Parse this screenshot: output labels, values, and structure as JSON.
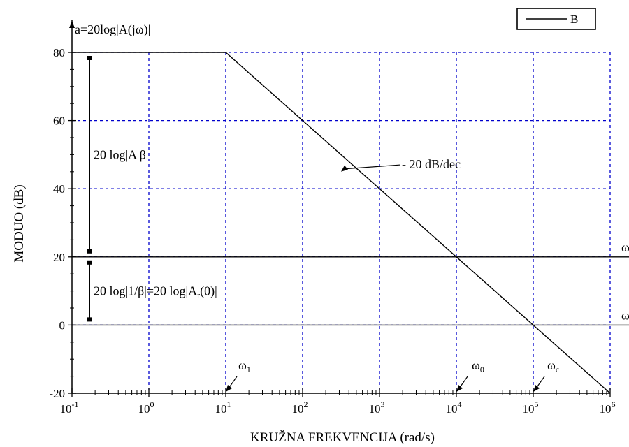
{
  "chart_data": {
    "type": "line",
    "title": "",
    "xlabel": "KRUŽNA FREKVENCIJA (rad/s)",
    "ylabel": "MODUO (dB)",
    "y_axis_top_label": "a=20log|A(jω)|",
    "x_scale": "log",
    "xlim": [
      0.1,
      1000000
    ],
    "ylim": [
      -20,
      80
    ],
    "x_ticks": [
      {
        "base": "10",
        "exp": "-1",
        "value": 0.1
      },
      {
        "base": "10",
        "exp": "0",
        "value": 1
      },
      {
        "base": "10",
        "exp": "1",
        "value": 10
      },
      {
        "base": "10",
        "exp": "2",
        "value": 100
      },
      {
        "base": "10",
        "exp": "3",
        "value": 1000
      },
      {
        "base": "10",
        "exp": "4",
        "value": 10000
      },
      {
        "base": "10",
        "exp": "5",
        "value": 100000
      },
      {
        "base": "10",
        "exp": "6",
        "value": 1000000
      }
    ],
    "y_ticks": [
      "-20",
      "0",
      "20",
      "40",
      "60",
      "80"
    ],
    "y_tick_values": [
      -20,
      0,
      20,
      40,
      60,
      80
    ],
    "grid": "dotted-blue",
    "grid_color": "#0000cc",
    "legend": {
      "position": "top-right",
      "entries": [
        "B"
      ]
    },
    "series": [
      {
        "name": "B",
        "x": [
          0.1,
          10,
          1000000
        ],
        "y": [
          80,
          80,
          -20
        ]
      }
    ],
    "reference_lines": [
      {
        "y": 20,
        "right_label": "ω"
      },
      {
        "y": 0,
        "right_label": "ω"
      }
    ],
    "annotations": {
      "slope": "- 20 dB/dec",
      "omega_1": {
        "base": "ω",
        "sub": "1",
        "x": 10
      },
      "omega_0": {
        "base": "ω",
        "sub": "0",
        "x": 10000
      },
      "omega_c": {
        "base": "ω",
        "sub": "c",
        "x": 100000
      },
      "upper_bracket": {
        "text": "20 log|A β|",
        "y_from": 20,
        "y_to": 80
      },
      "lower_bracket": {
        "text": "20 log|1/β|=20 log|A",
        "sub": "r",
        "text_end": "(0)|",
        "y_from": 0,
        "y_to": 20
      }
    }
  }
}
